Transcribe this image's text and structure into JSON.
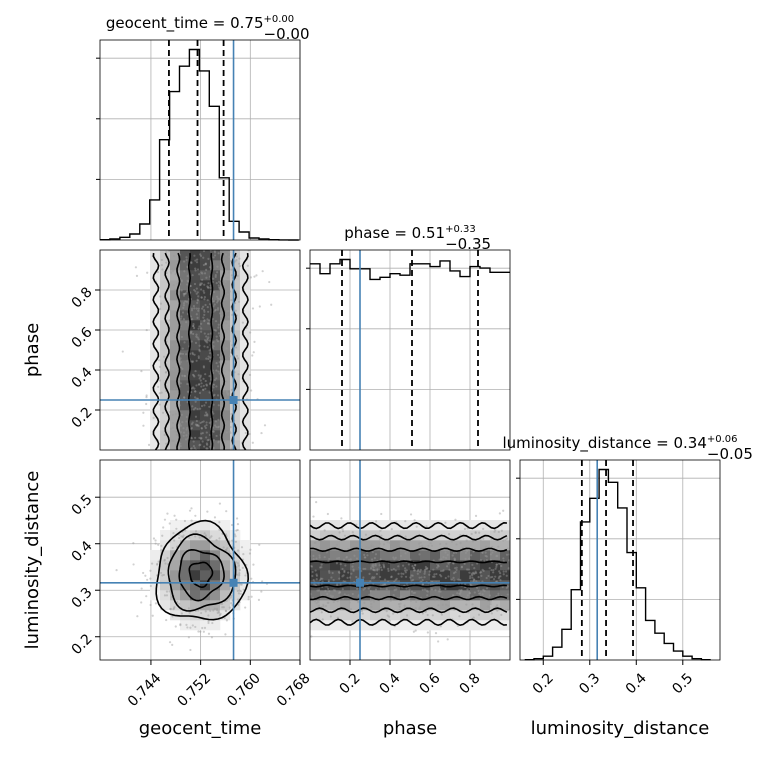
{
  "chart_data": {
    "type": "corner",
    "parameters": [
      "geocent_time",
      "phase",
      "luminosity_distance"
    ],
    "axis_labels": {
      "geocent_time": "geocent_time",
      "phase": "phase",
      "luminosity_distance": "luminosity_distance"
    },
    "ranges": {
      "geocent_time": [
        0.7358,
        0.768
      ],
      "phase": [
        0.0,
        1.0
      ],
      "luminosity_distance": [
        0.15,
        0.58
      ]
    },
    "ticks": {
      "geocent_time": {
        "values": [
          0.744,
          0.752,
          0.76,
          0.768
        ],
        "labels": [
          "0.744",
          "0.752",
          "0.760",
          "0.768"
        ]
      },
      "phase": {
        "values": [
          0.2,
          0.4,
          0.6,
          0.8
        ],
        "labels": [
          "0.2",
          "0.4",
          "0.6",
          "0.8"
        ]
      },
      "luminosity_distance": {
        "values": [
          0.2,
          0.3,
          0.4,
          0.5
        ],
        "labels": [
          "0.2",
          "0.3",
          "0.4",
          "0.5"
        ]
      }
    },
    "injection": {
      "geocent_time": 0.7573,
      "phase": 0.25,
      "luminosity_distance": 0.316
    },
    "titles": {
      "geocent_time": {
        "text": "geocent_time = 0.75",
        "plus": "+0.00",
        "minus": "−0.00"
      },
      "phase": {
        "text": "phase = 0.51",
        "plus": "+0.33",
        "minus": "−0.35"
      },
      "luminosity_distance": {
        "text": "luminosity_distance = 0.34",
        "plus": "+0.06",
        "minus": "−0.05"
      }
    },
    "quantiles": {
      "geocent_time": [
        0.7469,
        0.7515,
        0.7557
      ],
      "phase": [
        0.16,
        0.51,
        0.84
      ],
      "luminosity_distance": [
        0.283,
        0.335,
        0.393
      ]
    },
    "histograms": {
      "geocent_time": {
        "edges": [
          0.7358,
          0.7374,
          0.739,
          0.7406,
          0.7422,
          0.7438,
          0.7454,
          0.747,
          0.7486,
          0.7502,
          0.7518,
          0.7534,
          0.755,
          0.7566,
          0.7582,
          0.7598,
          0.7614,
          0.763,
          0.7646,
          0.7662,
          0.7678
        ],
        "counts": [
          0.5,
          1.5,
          4,
          9,
          24,
          60,
          150,
          222,
          260,
          285,
          253,
          200,
          93,
          28,
          12,
          3,
          1.5,
          0.5,
          0.2,
          0
        ]
      },
      "phase": {
        "edges": [
          0,
          0.05,
          0.1,
          0.15,
          0.2,
          0.25,
          0.3,
          0.35,
          0.4,
          0.45,
          0.5,
          0.55,
          0.6,
          0.65,
          0.7,
          0.75,
          0.8,
          0.85,
          0.9,
          0.95,
          1.0
        ],
        "counts": [
          262,
          248,
          262,
          268,
          255,
          255,
          240,
          243,
          248,
          246,
          262,
          262,
          258,
          266,
          252,
          244,
          258,
          256,
          250,
          250
        ]
      },
      "luminosity_distance": {
        "edges": [
          0.16,
          0.18,
          0.2,
          0.22,
          0.24,
          0.26,
          0.28,
          0.3,
          0.32,
          0.34,
          0.36,
          0.38,
          0.4,
          0.42,
          0.44,
          0.46,
          0.48,
          0.5,
          0.52,
          0.54,
          0.56
        ],
        "counts": [
          0.5,
          2,
          6,
          20,
          48,
          110,
          216,
          253,
          298,
          278,
          238,
          168,
          113,
          62,
          42,
          26,
          14,
          6,
          2,
          0.5
        ]
      }
    },
    "scatter_summary": {
      "geocent_time": {
        "mean": 0.752,
        "sd": 0.0036
      },
      "phase": {
        "mean": 0.5,
        "sd": 0.29
      },
      "luminosity_distance": {
        "mean": 0.335,
        "sd": 0.052
      }
    },
    "grid": true
  }
}
